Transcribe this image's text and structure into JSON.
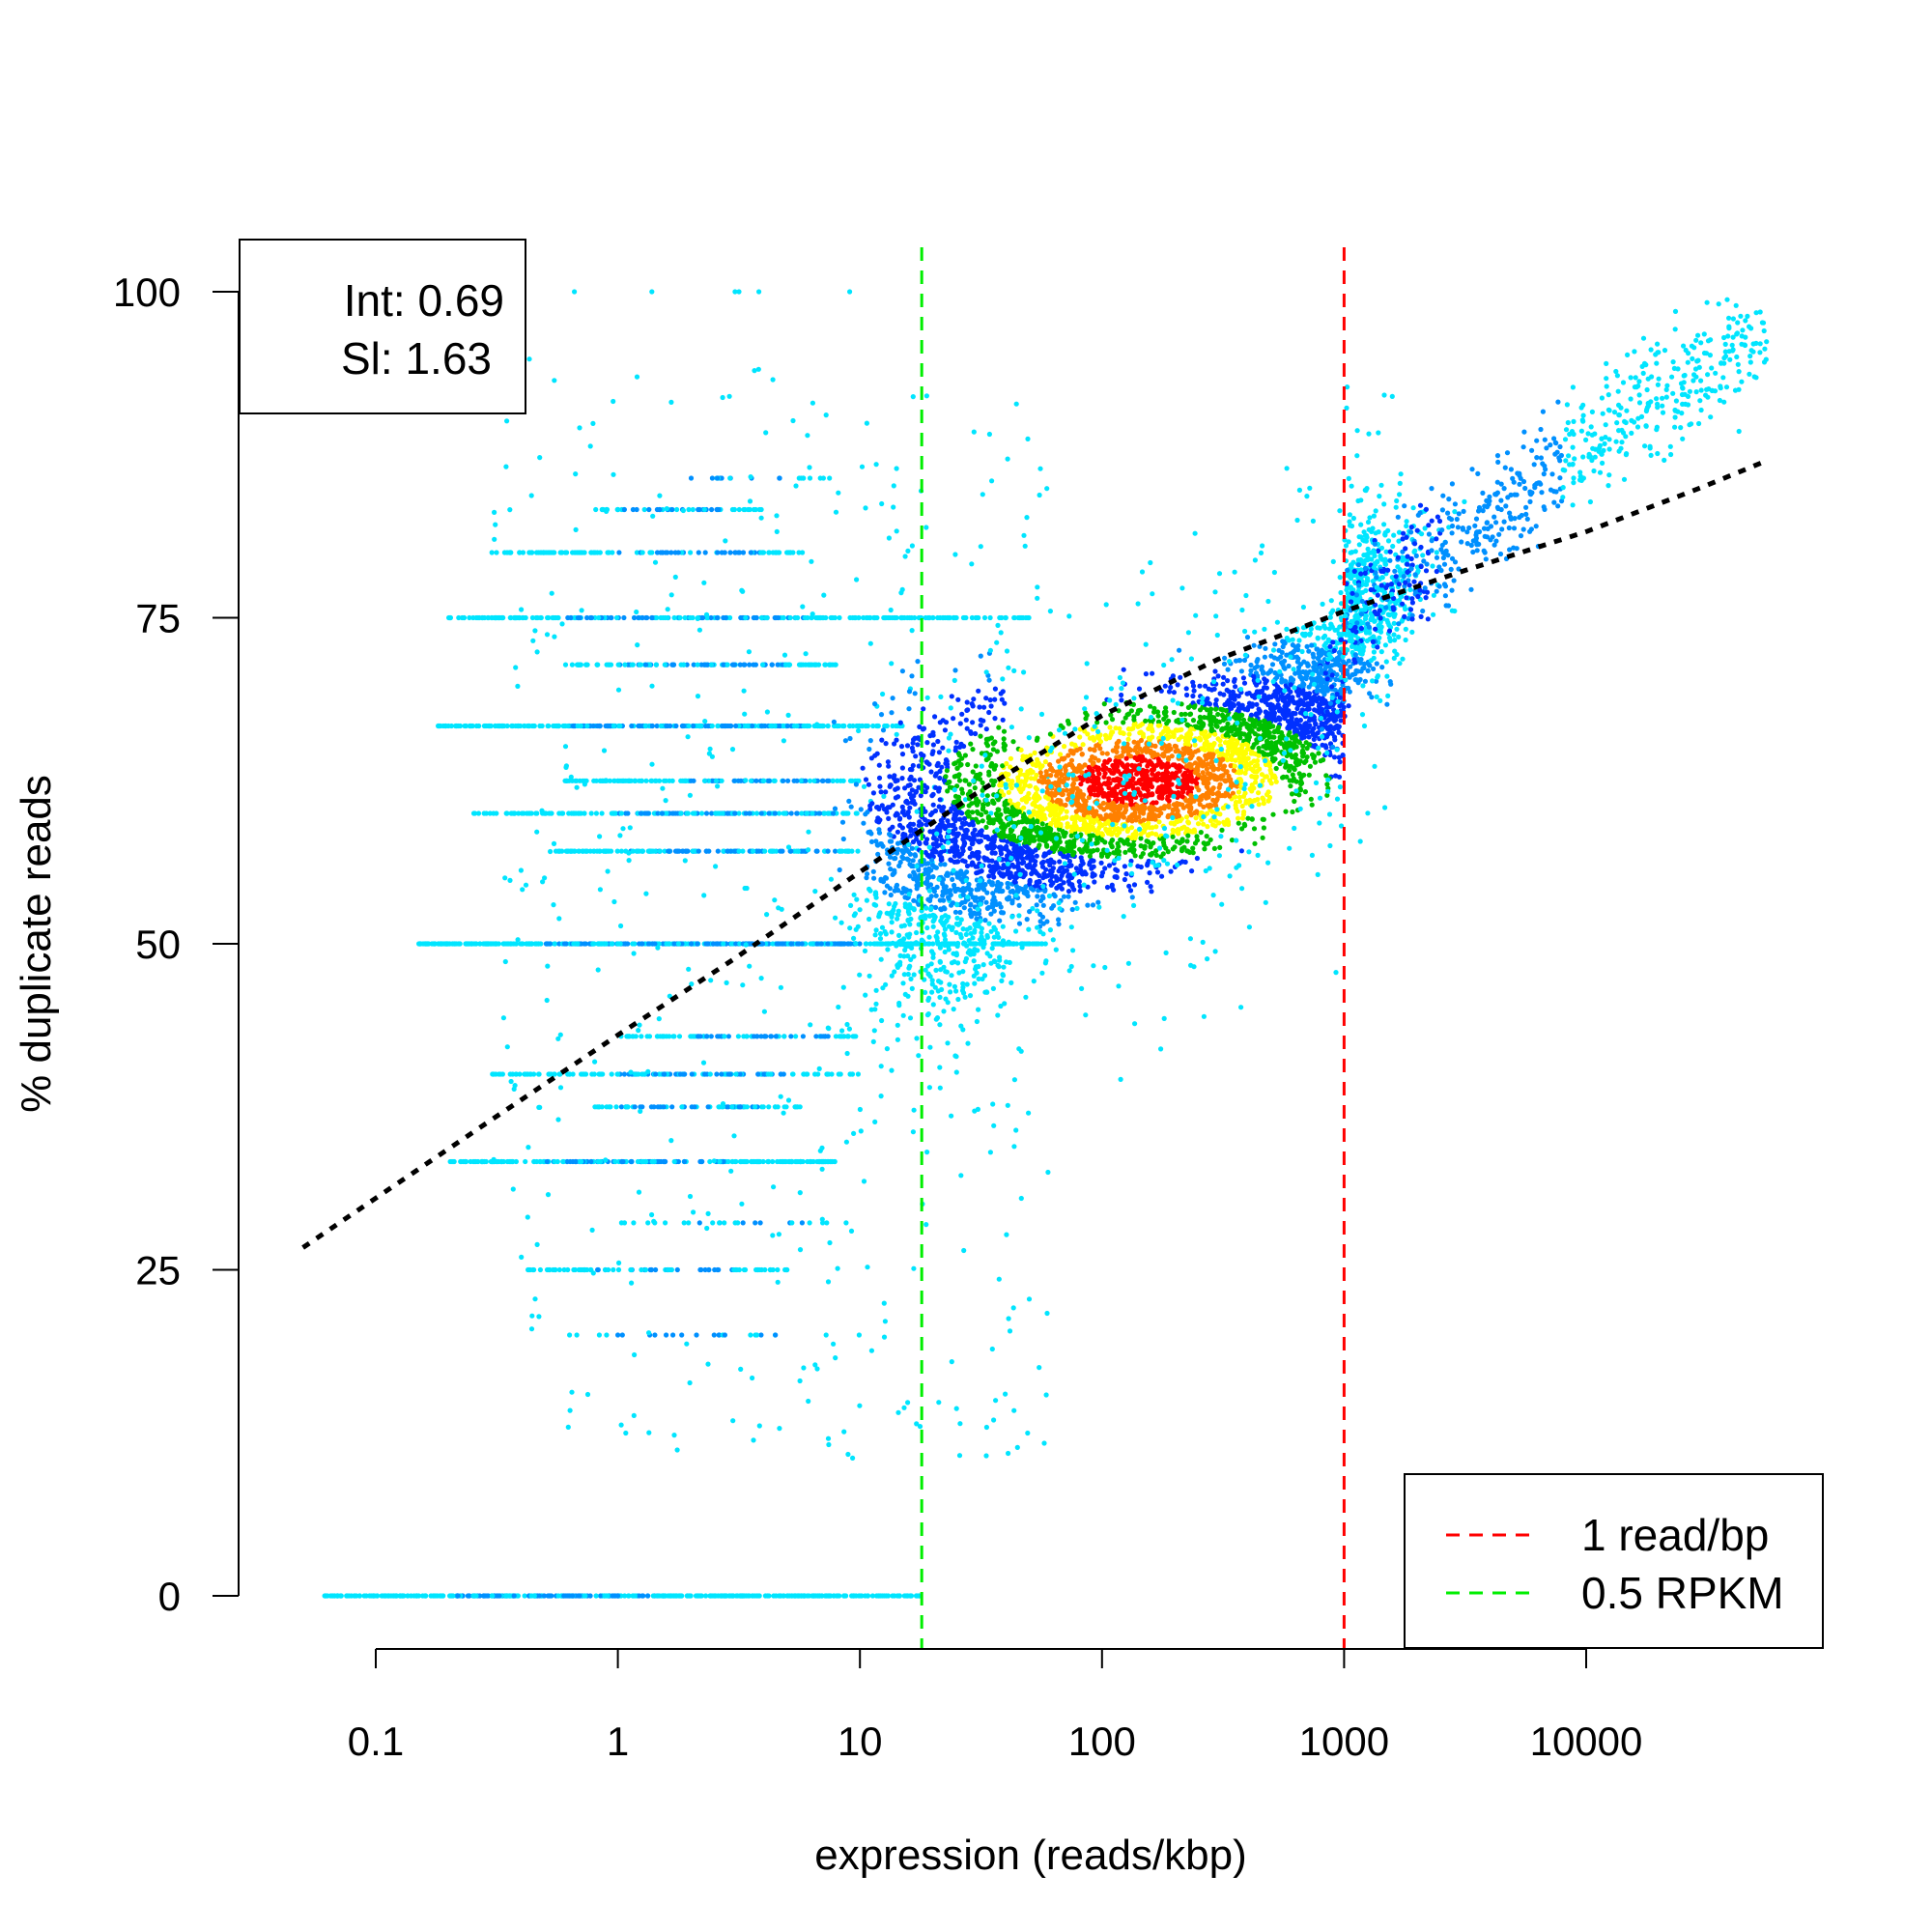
{
  "chart_data": {
    "type": "scatter",
    "x_scale": "log10",
    "xlabel": "expression (reads/kbp)",
    "ylabel": "% duplicate reads",
    "xlim": [
      0.04,
      60000
    ],
    "ylim": [
      0,
      100
    ],
    "x_ticks": [
      {
        "value": 0.1,
        "label": "0.1"
      },
      {
        "value": 1,
        "label": "1"
      },
      {
        "value": 10,
        "label": "10"
      },
      {
        "value": 100,
        "label": "100"
      },
      {
        "value": 1000,
        "label": "1000"
      },
      {
        "value": 10000,
        "label": "10000"
      }
    ],
    "y_ticks": [
      {
        "value": 0,
        "label": "0"
      },
      {
        "value": 25,
        "label": "25"
      },
      {
        "value": 50,
        "label": "50"
      },
      {
        "value": 75,
        "label": "75"
      },
      {
        "value": 100,
        "label": "100"
      }
    ],
    "fit_stats": {
      "intercept_label": "Int: 0.69",
      "slope_label": "Sl: 1.63",
      "intercept": 0.69,
      "slope": 1.63
    },
    "fit_curve": {
      "style": "dotted",
      "color": "#000000",
      "points": [
        [
          0.05,
          26.7
        ],
        [
          0.1,
          30.5
        ],
        [
          0.3,
          36.5
        ],
        [
          1,
          43.0
        ],
        [
          3,
          48.8
        ],
        [
          10,
          55.5
        ],
        [
          30,
          61.5
        ],
        [
          100,
          67.5
        ],
        [
          300,
          71.8
        ],
        [
          1000,
          75.5
        ],
        [
          3000,
          78.5
        ],
        [
          10000,
          81.6
        ],
        [
          30000,
          85.0
        ],
        [
          55000,
          87.0
        ]
      ]
    },
    "reference_lines": [
      {
        "x": 1000,
        "color": "#ff0000",
        "style": "dashed",
        "label": "1 read/bp"
      },
      {
        "x": 18,
        "color": "#00ee00",
        "style": "dashed",
        "label": "0.5 RPKM"
      }
    ],
    "legend": {
      "position": "bottom-right",
      "entries": [
        {
          "label": "1 read/bp",
          "color": "#ff0000",
          "style": "dashed"
        },
        {
          "label": "0.5 RPKM",
          "color": "#00ee00",
          "style": "dashed"
        }
      ]
    },
    "density_color_ramp": [
      "#00e5ff",
      "#0090ff",
      "#0030ff",
      "#00c000",
      "#ffff00",
      "#ff8000",
      "#ff0000"
    ],
    "point_groups": [
      {
        "name": "zero-duplication",
        "kind": "row",
        "y": 0,
        "x_range": [
          0.06,
          18
        ],
        "density": "high-left"
      },
      {
        "name": "fifty-percent",
        "kind": "row",
        "y": 50,
        "x_range": [
          0.15,
          60
        ],
        "density": "high"
      },
      {
        "name": "two-thirds",
        "kind": "row",
        "y": 66.7,
        "x_range": [
          0.18,
          15
        ],
        "density": "medium"
      },
      {
        "name": "seventy-five",
        "kind": "row",
        "y": 75,
        "x_range": [
          0.2,
          50
        ],
        "density": "medium"
      },
      {
        "name": "one-third",
        "kind": "row",
        "y": 33.3,
        "x_range": [
          0.2,
          8
        ],
        "density": "medium"
      },
      {
        "name": "main-cloud",
        "kind": "cloud",
        "x_center": 150,
        "y_center": 63,
        "density": "peak"
      },
      {
        "name": "high-expression-tail",
        "kind": "trend",
        "x_range": [
          1000,
          55000
        ],
        "y_range": [
          76,
          99
        ]
      }
    ]
  }
}
